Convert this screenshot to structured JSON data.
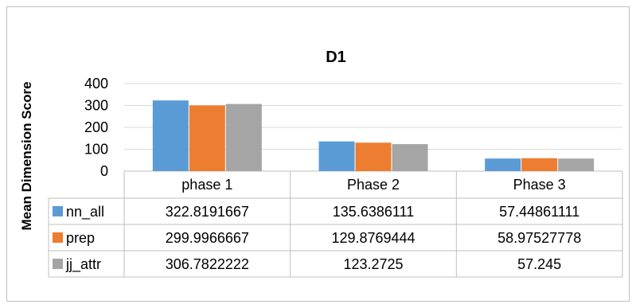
{
  "chart_data": {
    "type": "bar",
    "title": "D1",
    "xlabel": "",
    "ylabel": "Mean Dimension Score",
    "ylim": [
      0,
      400
    ],
    "yticks": [
      0,
      100,
      200,
      300,
      400
    ],
    "categories": [
      "phase 1",
      "Phase 2",
      "Phase 3"
    ],
    "series": [
      {
        "name": "nn_all",
        "color": "#5b9bd5",
        "values": [
          322.8191667,
          135.6386111,
          57.44861111
        ],
        "labels": [
          "322.8191667",
          "135.6386111",
          "57.44861111"
        ]
      },
      {
        "name": "prep",
        "color": "#ed7d31",
        "values": [
          299.9966667,
          129.8769444,
          58.97527778
        ],
        "labels": [
          "299.9966667",
          "129.8769444",
          "58.97527778"
        ]
      },
      {
        "name": "jj_attr",
        "color": "#a5a5a5",
        "values": [
          306.7822222,
          123.2725,
          57.245
        ],
        "labels": [
          "306.7822222",
          "123.2725",
          "57.245"
        ]
      }
    ],
    "grid": true,
    "legend": "data-table"
  }
}
